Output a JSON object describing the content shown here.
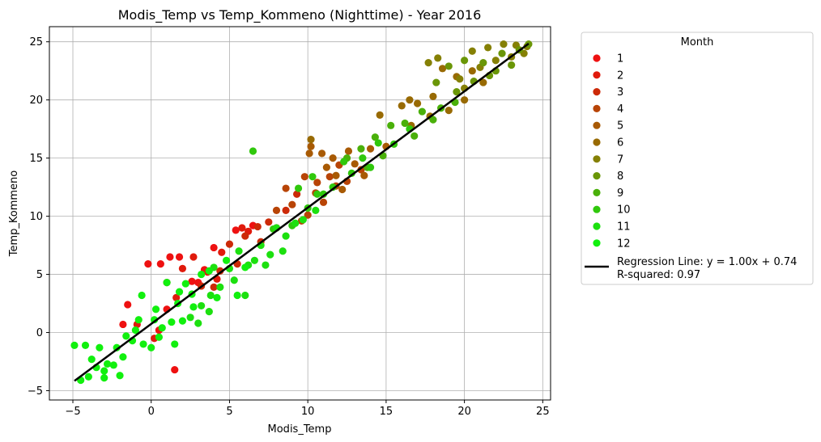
{
  "chart_data": {
    "type": "scatter",
    "title": "Modis_Temp vs Temp_Kommeno (Nighttime) - Year 2016",
    "xlabel": "Modis_Temp",
    "ylabel": "Temp_Kommeno",
    "xlim": [
      -6.5,
      25.5
    ],
    "ylim": [
      -5.8,
      26.3
    ],
    "x_ticks": [
      -5,
      0,
      5,
      10,
      15,
      20,
      25
    ],
    "y_ticks": [
      -5,
      0,
      5,
      10,
      15,
      20,
      25
    ],
    "x_tick_labels": [
      "−5",
      "0",
      "5",
      "10",
      "15",
      "20",
      "25"
    ],
    "y_tick_labels": [
      "−5",
      "0",
      "5",
      "10",
      "15",
      "20",
      "25"
    ],
    "grid": true,
    "legend": {
      "title": "Month",
      "placement": "outside-right",
      "regression_label_line1": "Regression Line: y = 1.00x + 0.74",
      "regression_label_line2": "R-squared: 0.97"
    },
    "regression": {
      "slope": 1.0,
      "intercept": 0.74,
      "x_range": [
        -4.9,
        24.1
      ],
      "r_squared": 0.97,
      "color": "#000000"
    },
    "series": [
      {
        "name": "1",
        "color": "#ee1111",
        "points": [
          [
            -0.2,
            5.9
          ],
          [
            0.6,
            5.9
          ],
          [
            1.2,
            6.5
          ],
          [
            1.8,
            6.5
          ],
          [
            -1.8,
            0.7
          ],
          [
            -1.5,
            2.4
          ],
          [
            1.5,
            -3.2
          ],
          [
            0.5,
            0.2
          ],
          [
            2.6,
            4.4
          ],
          [
            3.4,
            5.4
          ],
          [
            4.0,
            7.3
          ],
          [
            5.4,
            8.8
          ],
          [
            6.5,
            9.2
          ],
          [
            1.0,
            2.0
          ],
          [
            3.0,
            4.3
          ]
        ]
      },
      {
        "name": "2",
        "color": "#e01a0c",
        "points": [
          [
            -0.9,
            0.7
          ],
          [
            1.0,
            4.3
          ],
          [
            2.0,
            5.5
          ],
          [
            2.7,
            6.5
          ],
          [
            4.5,
            6.9
          ],
          [
            5.8,
            9.0
          ],
          [
            3.6,
            5.2
          ],
          [
            1.6,
            3.0
          ],
          [
            4.2,
            4.6
          ],
          [
            0.2,
            -0.5
          ],
          [
            6.2,
            8.7
          ]
        ]
      },
      {
        "name": "3",
        "color": "#cc2a08",
        "points": [
          [
            3.2,
            4.0
          ],
          [
            4.4,
            5.3
          ],
          [
            5.0,
            7.6
          ],
          [
            6.0,
            8.3
          ],
          [
            7.5,
            9.5
          ],
          [
            8.6,
            10.5
          ],
          [
            9.3,
            11.9
          ],
          [
            4.0,
            3.9
          ],
          [
            7.0,
            7.8
          ],
          [
            5.5,
            5.9
          ],
          [
            8.0,
            9.0
          ],
          [
            6.8,
            9.1
          ]
        ]
      },
      {
        "name": "4",
        "color": "#b84406",
        "points": [
          [
            8.6,
            12.4
          ],
          [
            9.8,
            13.4
          ],
          [
            10.6,
            12.9
          ],
          [
            11.4,
            13.4
          ],
          [
            12.0,
            14.4
          ],
          [
            8.0,
            10.5
          ],
          [
            9.0,
            11.0
          ],
          [
            10.0,
            10.1
          ],
          [
            11.0,
            11.2
          ],
          [
            12.5,
            13.0
          ],
          [
            13.4,
            14.0
          ],
          [
            10.5,
            12.0
          ],
          [
            9.6,
            9.6
          ],
          [
            11.8,
            12.6
          ]
        ]
      },
      {
        "name": "5",
        "color": "#a85a04",
        "points": [
          [
            10.1,
            15.4
          ],
          [
            10.9,
            15.4
          ],
          [
            11.6,
            15.0
          ],
          [
            12.6,
            15.6
          ],
          [
            13.0,
            14.5
          ],
          [
            14.0,
            15.8
          ],
          [
            10.2,
            16.0
          ],
          [
            11.8,
            13.5
          ],
          [
            12.2,
            12.3
          ],
          [
            13.6,
            13.5
          ],
          [
            15.0,
            16.0
          ],
          [
            11.2,
            14.2
          ]
        ]
      },
      {
        "name": "6",
        "color": "#986a03",
        "points": [
          [
            10.2,
            16.6
          ],
          [
            14.6,
            18.7
          ],
          [
            16.0,
            19.5
          ],
          [
            16.5,
            20.0
          ],
          [
            17.0,
            19.7
          ],
          [
            18.0,
            20.3
          ],
          [
            18.6,
            22.7
          ],
          [
            19.5,
            22.0
          ],
          [
            20.5,
            22.5
          ],
          [
            16.6,
            17.8
          ],
          [
            17.8,
            18.6
          ],
          [
            20.0,
            20.0
          ],
          [
            19.0,
            19.1
          ],
          [
            21.2,
            21.5
          ]
        ]
      },
      {
        "name": "7",
        "color": "#858005",
        "points": [
          [
            17.7,
            23.2
          ],
          [
            18.3,
            23.6
          ],
          [
            20.5,
            24.2
          ],
          [
            21.5,
            24.5
          ],
          [
            22.5,
            24.8
          ],
          [
            23.3,
            24.7
          ],
          [
            23.8,
            24.0
          ],
          [
            19.7,
            21.8
          ],
          [
            21.0,
            22.8
          ],
          [
            22.0,
            23.4
          ],
          [
            23.0,
            23.7
          ],
          [
            24.0,
            24.6
          ],
          [
            20.0,
            21.0
          ]
        ]
      },
      {
        "name": "8",
        "color": "#6a9607",
        "points": [
          [
            19.0,
            22.9
          ],
          [
            20.0,
            23.4
          ],
          [
            21.2,
            23.2
          ],
          [
            22.4,
            24.0
          ],
          [
            23.5,
            24.3
          ],
          [
            24.1,
            24.8
          ],
          [
            18.2,
            21.5
          ],
          [
            19.5,
            20.7
          ],
          [
            20.6,
            21.6
          ],
          [
            22.0,
            22.5
          ],
          [
            23.0,
            23.0
          ],
          [
            21.6,
            22.1
          ]
        ]
      },
      {
        "name": "9",
        "color": "#4ab00a",
        "points": [
          [
            12.5,
            15.0
          ],
          [
            13.4,
            15.8
          ],
          [
            14.3,
            16.8
          ],
          [
            15.3,
            17.8
          ],
          [
            16.2,
            18.0
          ],
          [
            17.3,
            19.0
          ],
          [
            18.5,
            19.3
          ],
          [
            19.4,
            19.8
          ],
          [
            14.8,
            15.2
          ],
          [
            16.8,
            16.9
          ],
          [
            18.0,
            18.3
          ],
          [
            13.8,
            14.2
          ]
        ]
      },
      {
        "name": "10",
        "color": "#30c80c",
        "points": [
          [
            9.4,
            12.4
          ],
          [
            10.6,
            11.9
          ],
          [
            11.6,
            12.5
          ],
          [
            12.3,
            14.7
          ],
          [
            13.5,
            15.0
          ],
          [
            14.5,
            16.3
          ],
          [
            15.5,
            16.2
          ],
          [
            16.5,
            17.5
          ],
          [
            9.0,
            9.2
          ],
          [
            10.0,
            10.7
          ],
          [
            11.0,
            11.9
          ],
          [
            12.8,
            13.7
          ],
          [
            10.3,
            13.4
          ],
          [
            14.0,
            14.2
          ],
          [
            7.8,
            8.9
          ],
          [
            6.5,
            15.6
          ]
        ]
      },
      {
        "name": "11",
        "color": "#1ce00f",
        "points": [
          [
            5.6,
            7.0
          ],
          [
            6.2,
            5.8
          ],
          [
            7.0,
            7.5
          ],
          [
            7.6,
            6.7
          ],
          [
            8.4,
            7.0
          ],
          [
            9.2,
            9.4
          ],
          [
            5.0,
            5.5
          ],
          [
            4.4,
            3.9
          ],
          [
            3.8,
            3.2
          ],
          [
            3.2,
            2.3
          ],
          [
            6.6,
            6.2
          ],
          [
            7.3,
            5.8
          ],
          [
            8.0,
            9.0
          ],
          [
            9.7,
            9.7
          ],
          [
            10.5,
            10.5
          ],
          [
            5.3,
            4.5
          ],
          [
            6.0,
            3.2
          ],
          [
            2.5,
            1.3
          ],
          [
            4.0,
            5.6
          ],
          [
            8.6,
            8.3
          ],
          [
            3.0,
            0.8
          ],
          [
            3.7,
            1.8
          ]
        ]
      },
      {
        "name": "12",
        "color": "#11f00e",
        "points": [
          [
            -4.9,
            -1.1
          ],
          [
            -4.2,
            -1.1
          ],
          [
            -3.8,
            -2.3
          ],
          [
            -3.3,
            -1.3
          ],
          [
            -2.8,
            -2.7
          ],
          [
            -2.2,
            -1.3
          ],
          [
            -1.6,
            -0.3
          ],
          [
            -1.0,
            0.2
          ],
          [
            -0.6,
            3.2
          ],
          [
            0.2,
            1.1
          ],
          [
            0.7,
            0.4
          ],
          [
            1.0,
            4.3
          ],
          [
            1.7,
            2.5
          ],
          [
            2.2,
            4.2
          ],
          [
            2.7,
            2.2
          ],
          [
            -4.5,
            -4.1
          ],
          [
            -4.0,
            -3.8
          ],
          [
            -3.5,
            -3.0
          ],
          [
            -3.0,
            -3.9
          ],
          [
            -2.4,
            -2.8
          ],
          [
            -1.8,
            -2.1
          ],
          [
            -1.2,
            -0.7
          ],
          [
            -0.5,
            -1.0
          ],
          [
            0.0,
            -1.3
          ],
          [
            0.5,
            -0.4
          ],
          [
            1.3,
            0.9
          ],
          [
            2.0,
            1.0
          ],
          [
            1.5,
            -1.0
          ],
          [
            2.6,
            3.3
          ],
          [
            3.2,
            5.0
          ],
          [
            3.7,
            5.3
          ],
          [
            4.2,
            3.0
          ],
          [
            4.8,
            6.2
          ],
          [
            5.5,
            3.2
          ],
          [
            6.0,
            5.6
          ],
          [
            -3.0,
            -3.3
          ],
          [
            -2.0,
            -3.7
          ],
          [
            -0.8,
            1.1
          ],
          [
            0.3,
            2.0
          ],
          [
            1.8,
            3.5
          ]
        ]
      }
    ]
  }
}
